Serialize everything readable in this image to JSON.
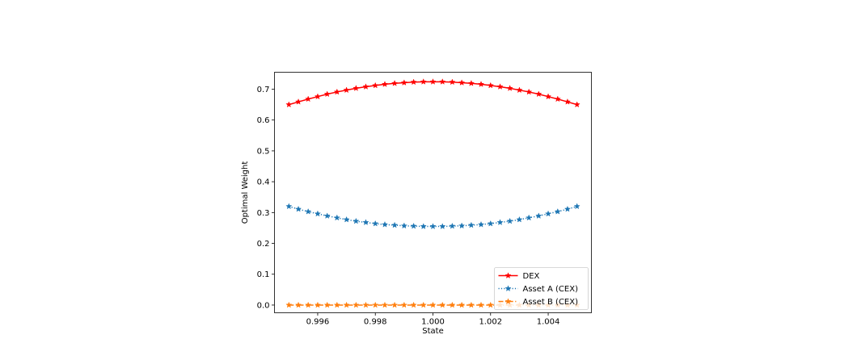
{
  "chart_data": {
    "type": "line",
    "title": "",
    "xlabel": "State",
    "ylabel": "Optimal Weight",
    "xlim": [
      0.9945,
      1.0055
    ],
    "ylim": [
      -0.025,
      0.755
    ],
    "xticks": [
      0.996,
      0.998,
      1.0,
      1.002,
      1.004
    ],
    "xtick_labels": [
      "0.996",
      "0.998",
      "1.000",
      "1.002",
      "1.004"
    ],
    "yticks": [
      0.0,
      0.1,
      0.2,
      0.3,
      0.4,
      0.5,
      0.6,
      0.7
    ],
    "ytick_labels": [
      "0.0",
      "0.1",
      "0.2",
      "0.3",
      "0.4",
      "0.5",
      "0.6",
      "0.7"
    ],
    "grid": false,
    "legend_position": "bottom-right",
    "x": [
      0.995,
      0.99533,
      0.99567,
      0.996,
      0.99633,
      0.99667,
      0.997,
      0.99733,
      0.99767,
      0.998,
      0.99833,
      0.99867,
      0.999,
      0.99933,
      0.99967,
      1.0,
      1.00033,
      1.00067,
      1.001,
      1.00133,
      1.00167,
      1.002,
      1.00233,
      1.00267,
      1.003,
      1.00333,
      1.00367,
      1.004,
      1.00433,
      1.00467,
      1.005
    ],
    "series": [
      {
        "name": "DEX",
        "color": "#ff0000",
        "style": "solid",
        "marker": "star",
        "values": [
          0.65,
          0.659,
          0.668,
          0.676,
          0.684,
          0.691,
          0.697,
          0.703,
          0.708,
          0.712,
          0.716,
          0.719,
          0.721,
          0.723,
          0.724,
          0.724,
          0.724,
          0.723,
          0.721,
          0.719,
          0.716,
          0.712,
          0.708,
          0.703,
          0.697,
          0.691,
          0.684,
          0.676,
          0.668,
          0.659,
          0.65
        ]
      },
      {
        "name": "Asset A (CEX)",
        "color": "#1f77b4",
        "style": "dotted",
        "marker": "star",
        "values": [
          0.32,
          0.311,
          0.303,
          0.296,
          0.289,
          0.283,
          0.277,
          0.272,
          0.268,
          0.264,
          0.261,
          0.259,
          0.257,
          0.256,
          0.255,
          0.255,
          0.255,
          0.256,
          0.257,
          0.259,
          0.261,
          0.264,
          0.268,
          0.272,
          0.277,
          0.283,
          0.289,
          0.296,
          0.303,
          0.311,
          0.32
        ]
      },
      {
        "name": "Asset B (CEX)",
        "color": "#ff7f0e",
        "style": "dashdot",
        "marker": "star",
        "values": [
          0.0,
          0.0,
          0.0,
          0.0,
          0.0,
          0.0,
          0.0,
          0.0,
          0.0,
          0.0,
          0.0,
          0.0,
          0.0,
          0.0,
          0.0,
          0.0,
          0.0,
          0.0,
          0.0,
          0.0,
          0.0,
          0.0,
          0.0,
          0.0,
          0.0,
          0.0,
          0.0,
          0.0,
          0.0,
          0.0,
          0.0
        ]
      }
    ]
  }
}
